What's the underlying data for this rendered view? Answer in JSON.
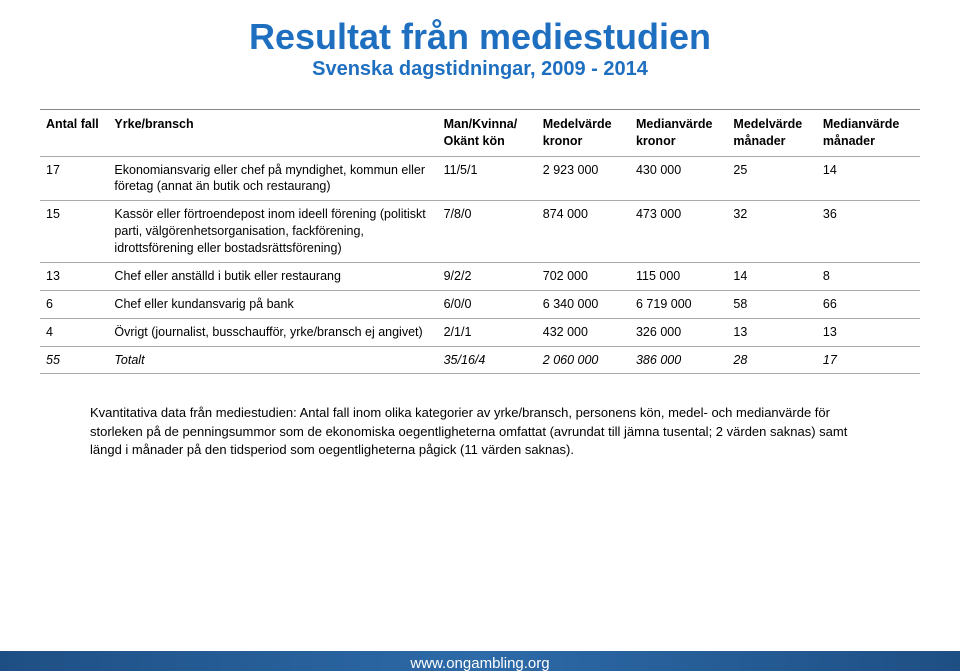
{
  "title": "Resultat från mediestudien",
  "subtitle": "Svenska dagstidningar, 2009 - 2014",
  "columns": [
    {
      "h1": "Antal fall",
      "h2": ""
    },
    {
      "h1": "Yrke/bransch",
      "h2": ""
    },
    {
      "h1": "Man/Kvinna/",
      "h2": "Okänt kön"
    },
    {
      "h1": "Medelvärde",
      "h2": "kronor"
    },
    {
      "h1": "Medianvärde",
      "h2": "kronor"
    },
    {
      "h1": "Medelvärde",
      "h2": "månader"
    },
    {
      "h1": "Medianvärde",
      "h2": "månader"
    }
  ],
  "rows": [
    {
      "n": "17",
      "yb": "Ekonomiansvarig eller chef på myndighet, kommun eller företag (annat än butik och restaurang)",
      "mk": "11/5/1",
      "mvk": "2 923 000",
      "mdk": "430 000",
      "mvm": "25",
      "mdm": "14"
    },
    {
      "n": "15",
      "yb": "Kassör eller förtroendepost inom ideell förening (politiskt parti, välgörenhetsorganisation, fackförening, idrottsförening eller bostadsrättsförening)",
      "mk": "7/8/0",
      "mvk": "874 000",
      "mdk": "473 000",
      "mvm": "32",
      "mdm": "36"
    },
    {
      "n": "13",
      "yb": "Chef eller anställd i butik eller restaurang",
      "mk": "9/2/2",
      "mvk": "702 000",
      "mdk": "115 000",
      "mvm": "14",
      "mdm": "8"
    },
    {
      "n": "6",
      "yb": "Chef eller kundansvarig på bank",
      "mk": "6/0/0",
      "mvk": "6 340 000",
      "mdk": "6 719 000",
      "mvm": "58",
      "mdm": "66"
    },
    {
      "n": "4",
      "yb": "Övrigt (journalist, busschaufför, yrke/bransch ej angivet)",
      "mk": "2/1/1",
      "mvk": "432 000",
      "mdk": "326 000",
      "mvm": "13",
      "mdm": "13"
    }
  ],
  "total": {
    "n": "55",
    "yb": "Totalt",
    "mk": "35/16/4",
    "mvk": "2 060 000",
    "mdk": "386 000",
    "mvm": "28",
    "mdm": "17"
  },
  "caption": "Kvantitativa data från mediestudien: Antal fall inom olika kategorier av yrke/bransch, personens kön, medel- och medianvärde för storleken på de penningsummor som de ekonomiska oegentligheterna omfattat (avrundat till jämna tusental; 2 värden saknas) samt längd i månader på den tidsperiod som oegentligheterna pågick (11 värden saknas).",
  "footer": "www.ongambling.org",
  "colors": {
    "title": "#1f6fc0",
    "footer_bg": "#1e4f84",
    "border": "#aaa",
    "text": "#000"
  },
  "typography": {
    "title_pt": 36,
    "subtitle_pt": 20,
    "body_pt": 12.5,
    "caption_pt": 13
  }
}
